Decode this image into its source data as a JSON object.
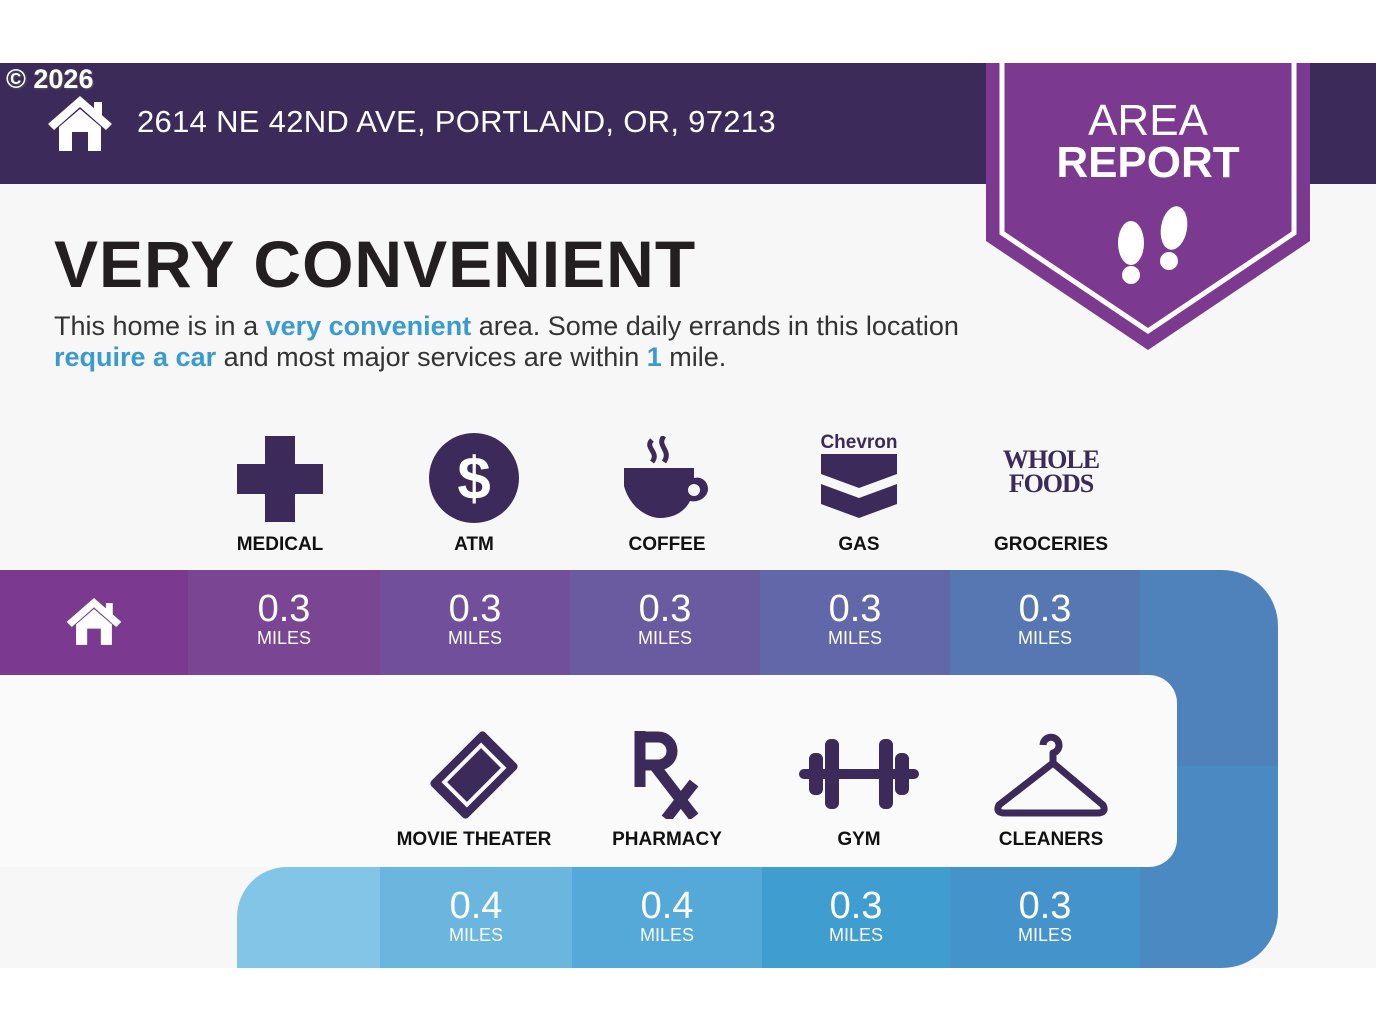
{
  "copyright": "© 2026",
  "address": "2614 NE 42ND AVE, PORTLAND, OR, 97213",
  "badge": {
    "line1": "AREA",
    "line2": "REPORT",
    "icon": "footprints-icon"
  },
  "headline": "VERY CONVENIENT",
  "description": {
    "p1": "This home is in a ",
    "h1": "very convenient",
    "p2": " area. Some daily errands in this location ",
    "h2": "require a car",
    "p3": " and most major services are within ",
    "h3": "1",
    "p4": " mile."
  },
  "colors": {
    "header": "#3c2a5b",
    "accent": "#3a9bd0",
    "badge": "#7b3a8f",
    "icon": "#3c2a5b"
  },
  "row1": [
    {
      "label": "MEDICAL",
      "icon": "medical-cross-icon",
      "value": "0.3",
      "unit": "MILES"
    },
    {
      "label": "ATM",
      "icon": "dollar-icon",
      "value": "0.3",
      "unit": "MILES"
    },
    {
      "label": "COFFEE",
      "icon": "coffee-cup-icon",
      "value": "0.3",
      "unit": "MILES"
    },
    {
      "label": "GAS",
      "icon": "chevron-logo-icon",
      "logo_text": "Chevron",
      "value": "0.3",
      "unit": "MILES"
    },
    {
      "label": "GROCERIES",
      "icon": "whole-foods-logo-icon",
      "logo_text": "WHOLE FOODS MARKET",
      "value": "0.3",
      "unit": "MILES"
    }
  ],
  "row2": [
    {
      "label": "MOVIE THEATER",
      "icon": "ticket-icon",
      "value": "0.4",
      "unit": "MILES"
    },
    {
      "label": "PHARMACY",
      "icon": "rx-icon",
      "value": "0.4",
      "unit": "MILES"
    },
    {
      "label": "GYM",
      "icon": "dumbbell-icon",
      "value": "0.3",
      "unit": "MILES"
    },
    {
      "label": "CLEANERS",
      "icon": "hanger-icon",
      "value": "0.3",
      "unit": "MILES"
    }
  ]
}
